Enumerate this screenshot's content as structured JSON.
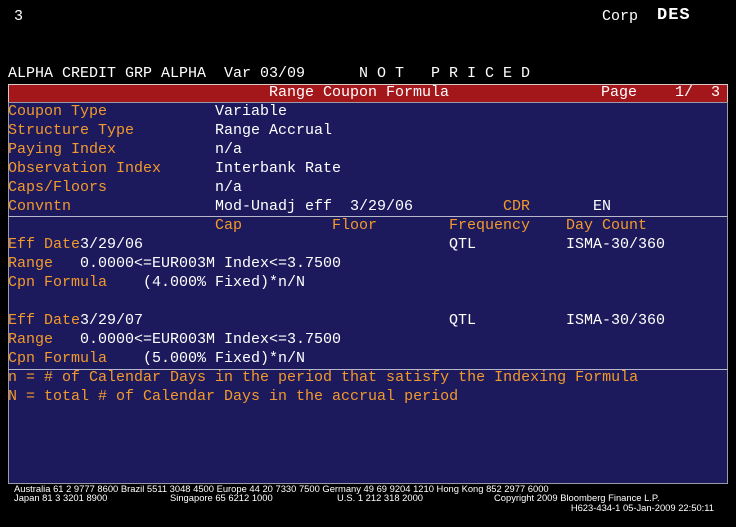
{
  "header": {
    "screen_number": "3",
    "market": "Corp",
    "function": "DES"
  },
  "security_line": {
    "name": "ALPHA CREDIT GRP ALPHA",
    "ticker": "Var 03/09",
    "status": "N O T   P R I C E D"
  },
  "title_bar": {
    "title": "Range Coupon Formula",
    "page_label": "Page",
    "page": "1/  3"
  },
  "fields": [
    {
      "label": "Coupon Type",
      "value": "Variable"
    },
    {
      "label": "Structure Type",
      "value": "Range Accrual"
    },
    {
      "label": "Paying Index",
      "value": "n/a"
    },
    {
      "label": "Observation Index",
      "value": "Interbank Rate"
    },
    {
      "label": "Caps/Floors",
      "value": "n/a"
    },
    {
      "label": "Convntn",
      "value": "Mod-Unadj eff  3/29/06",
      "cdr_label": "CDR",
      "cdr_value": "EN"
    }
  ],
  "columns": [
    "Cap",
    "Floor",
    "Frequency",
    "Day Count"
  ],
  "periods": [
    {
      "eff_label": "Eff Date",
      "eff_date": "3/29/06",
      "frequency": "QTL",
      "day_count": "ISMA-30/360",
      "range_label": "Range",
      "range": "0.0000<=EUR003M Index<=3.7500",
      "formula_label": "Cpn Formula",
      "formula": "(4.000% Fixed)*n/N"
    },
    {
      "eff_label": "Eff Date",
      "eff_date": "3/29/07",
      "frequency": "QTL",
      "day_count": "ISMA-30/360",
      "range_label": "Range",
      "range": "0.0000<=EUR003M Index<=3.7500",
      "formula_label": "Cpn Formula",
      "formula": "(5.000% Fixed)*n/N"
    }
  ],
  "notes": [
    "n = # of Calendar Days in the period that satisfy the Indexing Formula",
    "N = total # of Calendar Days in the accrual period"
  ],
  "footer": {
    "line1": "Australia 61 2 9777 8600 Brazil 5511 3048 4500 Europe 44 20 7330 7500 Germany 49 69 9204 1210 Hong Kong 852 2977 6000",
    "line2": [
      "Japan 81 3 3201 8900",
      "Singapore 65 6212 1000",
      "U.S. 1 212 318 2000",
      "Copyright 2009 Bloomberg Finance L.P."
    ],
    "line3": "H623-434-1 05-Jan-2009 22:50:11"
  }
}
